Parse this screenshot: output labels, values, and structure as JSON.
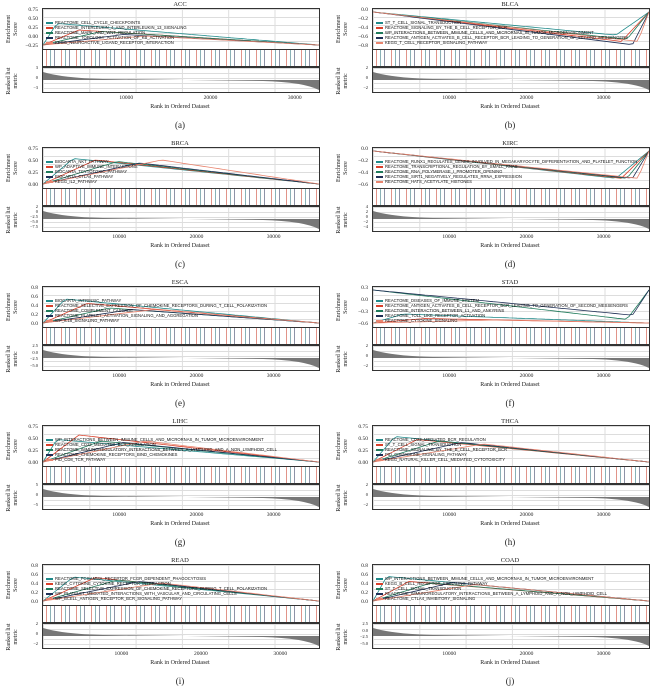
{
  "colors": {
    "teal": "#1f8a8a",
    "red": "#d9402b",
    "green": "#1e7a5a",
    "navy": "#1f2f55",
    "salmon": "#e8846e"
  },
  "common": {
    "ylabel_es": "Enrichment Score",
    "ylabel_rank": "Ranked list metric",
    "xlabel": "Rank in Ordered Dataset",
    "xticks": [
      "10000",
      "20000",
      "30000"
    ]
  },
  "chart_data": [
    {
      "type": "line",
      "title": "ACC",
      "caption": "(a)",
      "yticks": [
        "0.75",
        "0.50",
        "0.25",
        "0.00",
        "−0.25"
      ],
      "rank_yticks": [
        "3",
        "0",
        "−3"
      ],
      "xlim": [
        0,
        33000
      ],
      "series": [
        {
          "name": "REACTOME_CELL_CYCLE_CHECKPOINTS",
          "peak": 0.72
        },
        {
          "name": "REACTOME_INTERLEUKIN_4_AND_INTERLEUKIN_13_SIGNALING",
          "peak": 0.5
        },
        {
          "name": "REACTOME_MAPK_AND_WNT_REGULATION",
          "peak": 0.45
        },
        {
          "name": "REACTOME_TOPOLOGY_ACTIVATION_OF_KB_ACTIVATION",
          "peak": 0.35
        },
        {
          "name": "KEGG_NEUROACTIVE_LIGAND_RECEPTOR_INTERACTION",
          "peak": 0.3
        }
      ]
    },
    {
      "type": "line",
      "title": "BLCA",
      "caption": "(b)",
      "yticks": [
        "0.0",
        "−0.2",
        "−0.4",
        "−0.6",
        "−0.8"
      ],
      "rank_yticks": [
        "2",
        "0",
        "−2"
      ],
      "xlim": [
        0,
        36000
      ],
      "series": [
        {
          "name": "ST_T_CELL_SIGNAL_TRANSDUCTION",
          "min": -0.55
        },
        {
          "name": "REACTOME_SIGNALING_BY_THE_B_CELL_RECEPTOR_BCR",
          "min": -0.7
        },
        {
          "name": "WP_INTERACTIONS_BETWEEN_IMMUNE_CELLS_AND_MICRORNAS_IN_TUMOR_MICROENVIRONMENT",
          "min": -0.65
        },
        {
          "name": "REACTOME_ANTIGEN_ACTIVATES_B_CELL_RECEPTOR_BCR_LEADING_TO_GENERATION_OF_SECOND_MESSENGERS",
          "min": -0.78
        },
        {
          "name": "KEGG_T_CELL_RECEPTOR_SIGNALING_PATHWAY",
          "min": -0.7
        }
      ]
    },
    {
      "type": "line",
      "title": "BRCA",
      "caption": "(c)",
      "yticks": [
        "0.75",
        "0.50",
        "0.25",
        "0.00"
      ],
      "rank_yticks": [
        "2",
        "0",
        "−2.5",
        "−5.0",
        "−7.5"
      ],
      "xlim": [
        0,
        36000
      ],
      "series": [
        {
          "name": "BIOCARTA_NKT_PATHWAY",
          "peak": 0.85
        },
        {
          "name": "WP_ADAPTIVE_IMMUNE_INTERACTIONS",
          "peak": 0.8
        },
        {
          "name": "BIOCARTA_TCYTOTOXIC_PATHWAY",
          "peak": 0.75
        },
        {
          "name": "BIOCARTA_CTLA4_PATHWAY",
          "peak": 0.7
        },
        {
          "name": "KEGG_IL2_PATHWAY",
          "peak": 0.8
        }
      ]
    },
    {
      "type": "line",
      "title": "KIRC",
      "caption": "(d)",
      "yticks": [
        "0.0",
        "−0.2",
        "−0.4",
        "−0.6"
      ],
      "rank_yticks": [
        "4",
        "2",
        "0",
        "−2",
        "−4"
      ],
      "xlim": [
        0,
        36000
      ],
      "series": [
        {
          "name": "REACTOME_RUNX1_REGULATES_GENES_INVOLVED_IN_MEGAKARYOCYTE_DIFFERENTIATION_AND_PLATELET_FUNCTION",
          "min": -0.65
        },
        {
          "name": "REACTOME_TRANSCRIPTIONAL_REGULATION_BY_SMALL_RNAS",
          "min": -0.65
        },
        {
          "name": "REACTOME_RNA_POLYMERASE_I_PROMOTER_OPENING",
          "min": -0.65
        },
        {
          "name": "REACTOME_SIRT1_NEGATIVELY_REGULATES_RRNA_EXPRESSION",
          "min": -0.65
        },
        {
          "name": "REACTOME_HATS_ACETYLATE_HISTONES",
          "min": -0.65
        }
      ]
    },
    {
      "type": "line",
      "title": "ESCA",
      "caption": "(e)",
      "yticks": [
        "0.8",
        "0.6",
        "0.4",
        "0.2",
        "0.0"
      ],
      "rank_yticks": [
        "2.5",
        "0.0",
        "−2.5",
        "−5.0"
      ],
      "xlim": [
        0,
        36000
      ],
      "series": [
        {
          "name": "BIOCARTA_INTRINSIC_PATHWAY",
          "peak": 0.8
        },
        {
          "name": "REACTOME_SELECTIVE_EXPRESSION_OF_CHEMOKINE_RECEPTORS_DURING_T_CELL_POLARIZATION",
          "peak": 0.65
        },
        {
          "name": "REACTOME_COMPLEMENT_CASCADE",
          "peak": 0.5
        },
        {
          "name": "REACTOME_PLATELET_ACTIVATION_SIGNALING_AND_AGGREGATION",
          "peak": 0.45
        },
        {
          "name": "WP_IL18_SIGNALING_PATHWAY",
          "peak": 0.45
        }
      ]
    },
    {
      "type": "line",
      "title": "STAD",
      "caption": "(f)",
      "yticks": [
        "0.3",
        "0.0",
        "−0.3",
        "−0.6"
      ],
      "rank_yticks": [
        "2",
        "0",
        "−2"
      ],
      "xlim": [
        0,
        36000
      ],
      "series": [
        {
          "name": "REACTOME_DISEASES_OF_IMMUNE_SYSTEM",
          "peak": 0.3
        },
        {
          "name": "REACTOME_ANTIGEN_ACTIVATES_B_CELL_RECEPTOR_BCR_LEADING_TO_GENERATION_OF_SECOND_MESSENGERS",
          "peak": 0.15
        },
        {
          "name": "REACTOME_INTERACTION_BETWEEN_L1_AND_ANKYRINS",
          "min": -0.7
        },
        {
          "name": "REACTOME_TOLL_LIKE_RECEPTOR_ACTIVATION",
          "min": -0.6
        },
        {
          "name": "REACTOME_CYTOKINE_SIGNALING",
          "peak": 0.1
        }
      ]
    },
    {
      "type": "line",
      "title": "LIHC",
      "caption": "(g)",
      "yticks": [
        "0.75",
        "0.50",
        "0.25",
        "0.00"
      ],
      "rank_yticks": [
        "5",
        "0",
        "−5"
      ],
      "xlim": [
        0,
        36000
      ],
      "series": [
        {
          "name": "WP_INTERACTIONS_BETWEEN_IMMUNE_CELLS_AND_MICRORNAS_IN_TUMOR_MICROENVIRONMENT",
          "peak": 0.75
        },
        {
          "name": "REACTOME_CD22_MEDIATED_BCR_REGULATION",
          "peak": 0.9
        },
        {
          "name": "REACTOME_IMMUNOREGULATORY_INTERACTIONS_BETWEEN_A_LYMPHOID_AND_A_NON_LYMPHOID_CELL",
          "peak": 0.7
        },
        {
          "name": "REACTOME_CHEMOKINE_RECEPTORS_BIND_CHEMOKINES",
          "peak": 0.65
        },
        {
          "name": "PID_CD8_TCR_PATHWAY",
          "peak": 0.7
        }
      ]
    },
    {
      "type": "line",
      "title": "THCA",
      "caption": "(h)",
      "yticks": [
        "0.75",
        "0.50",
        "0.25",
        "0.00"
      ],
      "rank_yticks": [
        "2",
        "0",
        "−2"
      ],
      "xlim": [
        0,
        36000
      ],
      "series": [
        {
          "name": "REACTOME_CD22_MEDIATED_BCR_REGULATION",
          "peak": 0.85
        },
        {
          "name": "ST_T_CELL_SIGNAL_TRANSDUCTION",
          "peak": 0.75
        },
        {
          "name": "REACTOME_SIGNALING_BY_THE_B_CELL_RECEPTOR_BCR",
          "peak": 0.7
        },
        {
          "name": "PID_CHEMOKINE_SIGNALING_PATHWAY",
          "peak": 0.65
        },
        {
          "name": "KEGG_NATURAL_KILLER_CELL_MEDIATED_CYTOTOXICITY",
          "peak": 0.6
        }
      ]
    },
    {
      "type": "line",
      "title": "READ",
      "caption": "(i)",
      "yticks": [
        "0.8",
        "0.6",
        "0.4",
        "0.2",
        "0.0"
      ],
      "rank_yticks": [
        "2",
        "0",
        "−2"
      ],
      "xlim": [
        0,
        35000
      ],
      "series": [
        {
          "name": "REACTOME_FCGAMMA_RECEPTOR_FCGR_DEPENDENT_PHAGOCYTOSIS",
          "peak": 0.8
        },
        {
          "name": "KEGG_CYTOKINE_CYTOKINE_RECEPTOR_INTERACTION",
          "peak": 0.78
        },
        {
          "name": "REACTOME_SELECTIVE_EXPRESSION_OF_CHEMOKINE_RECEPTORS_DURING_T_CELL_POLARIZATION",
          "peak": 0.7
        },
        {
          "name": "WP_PLATELET_MEDIATED_INTERACTIONS_WITH_VASCULAR_AND_CIRCULATING_CELLS",
          "peak": 0.65
        },
        {
          "name": "WP_BCELL_ANTIGEN_RECEPTOR_BCR_SIGNALING_PATHWAY",
          "peak": 0.6
        }
      ]
    },
    {
      "type": "line",
      "title": "COAD",
      "caption": "(j)",
      "yticks": [
        "0.8",
        "0.6",
        "0.4",
        "0.2",
        "0.0"
      ],
      "rank_yticks": [
        "2.5",
        "0.0",
        "−2.5",
        "−5.0"
      ],
      "xlim": [
        0,
        36000
      ],
      "series": [
        {
          "name": "WP_INTERACTIONS_BETWEEN_IMMUNE_CELLS_AND_MICRORNAS_IN_TUMOR_MICROENVIRONMENT",
          "peak": 0.82
        },
        {
          "name": "KEGG_B_CELL_RECEPTOR_SIGNALING_PATHWAY",
          "peak": 0.65
        },
        {
          "name": "ST_T_CELL_SIGNAL_TRANSDUCTION",
          "peak": 0.6
        },
        {
          "name": "REACTOME_IMMUNOREGULATORY_INTERACTIONS_BETWEEN_A_LYMPHOID_AND_A_NON_LYMPHOID_CELL",
          "peak": 0.62
        },
        {
          "name": "REACTOME_CTLA4_INHIBITORY_SIGNALING",
          "peak": 0.55
        }
      ]
    }
  ]
}
